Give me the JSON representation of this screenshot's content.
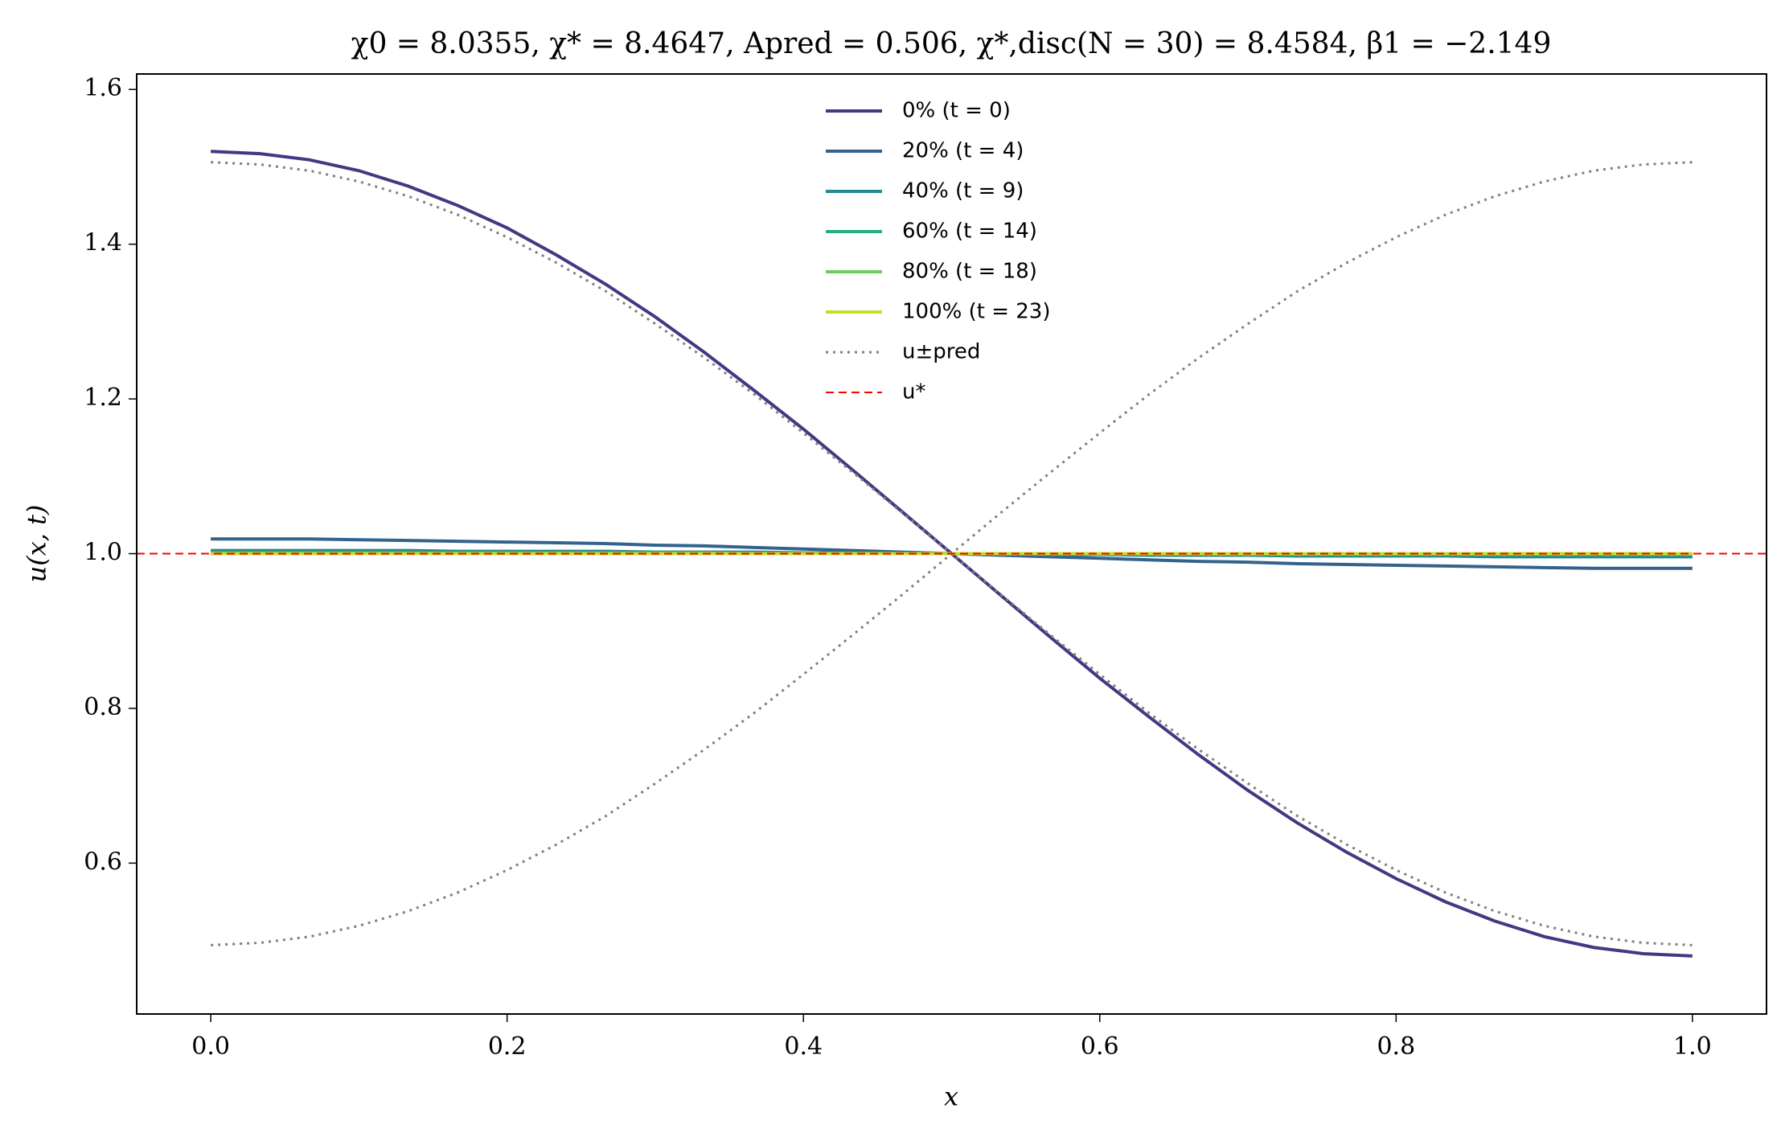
{
  "chart_data": {
    "type": "line",
    "title": "χ0 = 8.0355, χ* = 8.4647, Apred = 0.506, χ*,disc(N = 30) = 8.4584, β1 = −2.149",
    "x_label": "x",
    "y_label": "u(x, t)",
    "x": [
      0,
      0.0333,
      0.0667,
      0.1,
      0.1333,
      0.1667,
      0.2,
      0.2333,
      0.2667,
      0.3,
      0.3333,
      0.3667,
      0.4,
      0.4333,
      0.4667,
      0.5,
      0.5333,
      0.5667,
      0.6,
      0.6333,
      0.6667,
      0.7,
      0.7333,
      0.7667,
      0.8,
      0.8333,
      0.8667,
      0.9,
      0.9333,
      0.9667,
      1
    ],
    "series": [
      {
        "name": "0% (t = 0)",
        "color": "#453781",
        "values": [
          1.52,
          1.517,
          1.509,
          1.495,
          1.475,
          1.45,
          1.421,
          1.386,
          1.348,
          1.306,
          1.26,
          1.211,
          1.161,
          1.108,
          1.054,
          1.0,
          0.946,
          0.892,
          0.839,
          0.789,
          0.74,
          0.694,
          0.652,
          0.614,
          0.58,
          0.55,
          0.525,
          0.505,
          0.491,
          0.483,
          0.48
        ]
      },
      {
        "name": "20% (t = 4)",
        "color": "#33638d",
        "values": [
          1.019,
          1.019,
          1.019,
          1.018,
          1.017,
          1.016,
          1.015,
          1.014,
          1.013,
          1.011,
          1.01,
          1.008,
          1.006,
          1.004,
          1.002,
          1.0,
          0.998,
          0.996,
          0.994,
          0.992,
          0.99,
          0.989,
          0.987,
          0.986,
          0.985,
          0.984,
          0.983,
          0.982,
          0.981,
          0.981,
          0.981
        ]
      },
      {
        "name": "40% (t = 9)",
        "color": "#238a8d",
        "values": [
          1.004,
          1.004,
          1.004,
          1.004,
          1.004,
          1.003,
          1.003,
          1.003,
          1.003,
          1.002,
          1.002,
          1.002,
          1.001,
          1.001,
          1.0,
          1.0,
          1.0,
          0.999,
          0.999,
          0.998,
          0.998,
          0.998,
          0.997,
          0.997,
          0.997,
          0.997,
          0.996,
          0.996,
          0.996,
          0.996,
          0.996
        ]
      },
      {
        "name": "60% (t = 14)",
        "color": "#29af7f",
        "values": [
          1.001,
          1.001,
          1.001,
          1.001,
          1.001,
          1.001,
          1.001,
          1.001,
          1.001,
          1.001,
          1.001,
          1.0,
          1.0,
          1.0,
          1.0,
          1.0,
          1.0,
          1.0,
          1.0,
          1.0,
          1.0,
          0.999,
          0.999,
          0.999,
          0.999,
          0.999,
          0.999,
          0.999,
          0.999,
          0.999,
          0.999
        ]
      },
      {
        "name": "80% (t = 18)",
        "color": "#6ccd5a",
        "values": [
          1,
          1,
          1,
          1,
          1,
          1,
          1,
          1,
          1,
          1,
          1,
          1,
          1,
          1,
          1,
          1,
          1,
          1,
          1,
          1,
          1,
          1,
          1,
          1,
          1,
          1,
          1,
          1,
          1,
          1,
          1
        ]
      },
      {
        "name": "100% (t = 23)",
        "color": "#c2df23",
        "values": [
          1,
          1,
          1,
          1,
          1,
          1,
          1,
          1,
          1,
          1,
          1,
          1,
          1,
          1,
          1,
          1,
          1,
          1,
          1,
          1,
          1,
          1,
          1,
          1,
          1,
          1,
          1,
          1,
          1,
          1,
          1
        ]
      },
      {
        "name": "u±pred",
        "color": "#808080",
        "style": "dotted",
        "branches": [
          [
            1.506,
            1.503,
            1.495,
            1.481,
            1.462,
            1.438,
            1.409,
            1.376,
            1.339,
            1.297,
            1.253,
            1.206,
            1.156,
            1.105,
            1.053,
            1.0,
            0.947,
            0.895,
            0.844,
            0.794,
            0.747,
            0.703,
            0.661,
            0.624,
            0.591,
            0.562,
            0.538,
            0.519,
            0.505,
            0.497,
            0.494
          ],
          [
            0.494,
            0.497,
            0.505,
            0.519,
            0.538,
            0.562,
            0.591,
            0.624,
            0.661,
            0.703,
            0.747,
            0.794,
            0.844,
            0.895,
            0.947,
            1.0,
            1.053,
            1.105,
            1.156,
            1.206,
            1.253,
            1.297,
            1.339,
            1.376,
            1.409,
            1.438,
            1.462,
            1.481,
            1.495,
            1.503,
            1.506
          ]
        ]
      }
    ],
    "hline": {
      "name": "u*",
      "value": 1,
      "color": "#ff0000",
      "style": "dashed"
    },
    "xlim": [
      -0.05,
      1.05
    ],
    "xticks": [
      {
        "value": 0,
        "label": "0.0"
      },
      0.2,
      0.4,
      0.6,
      0.8,
      {
        "value": 1,
        "label": "1.0"
      }
    ],
    "ylim": [
      0.405,
      1.62
    ],
    "yticks": [
      0.6,
      0.8,
      {
        "value": 1,
        "label": "1.0"
      },
      1.2,
      1.4,
      1.6
    ],
    "grid": false,
    "legend": "upper center"
  }
}
